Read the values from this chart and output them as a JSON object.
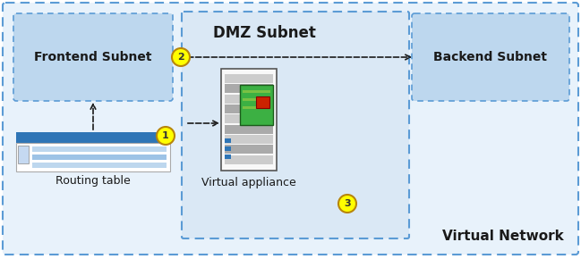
{
  "outer_fill": "#e8f2fb",
  "outer_border": "#5b9bd5",
  "dmz_fill": "#dae8f5",
  "dmz_border": "#5b9bd5",
  "subnet_fill": "#bdd7ee",
  "subnet_border": "#5b9bd5",
  "routing_header_color": "#2e75b6",
  "routing_line1": "#bdd7ee",
  "routing_line2": "#9dc3e6",
  "routing_line3": "#bdd7ee",
  "arrow_color": "#1a1a1a",
  "label_color": "#1a1a1a",
  "circle_fill": "#ffff00",
  "circle_border": "#b8860b",
  "virtual_network_label": "Virtual Network",
  "dmz_label": "DMZ Subnet",
  "frontend_label": "Frontend Subnet",
  "backend_label": "Backend Subnet",
  "appliance_label": "Virtual appliance",
  "routing_label": "Routing table",
  "server_body": "#f8f8f8",
  "server_border": "#555555",
  "server_stripe": "#cccccc",
  "server_stripe_dark": "#aaaaaa",
  "board_fill": "#3cb043",
  "board_border": "#1a5c1a",
  "chip_fill": "#cc2200",
  "chip_border": "#880000",
  "board_circuit": "#7ac143",
  "led_color": "#2e75b6"
}
